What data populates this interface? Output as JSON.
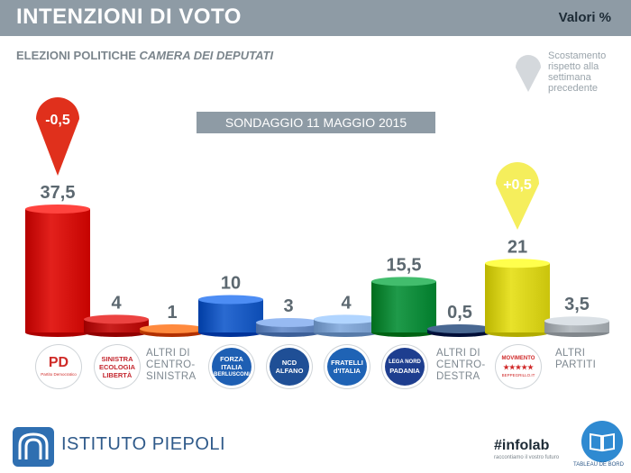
{
  "header": {
    "title": "INTENZIONI DI VOTO",
    "unit": "Valori %"
  },
  "subtitle": {
    "prefix": "ELEZIONI POLITICHE",
    "emphasis": "CAMERA DEI DEPUTATI"
  },
  "survey_label": "SONDAGGIO 11 MAGGIO 2015",
  "legend": {
    "lines": [
      "Scostamento",
      "rispetto alla",
      "settimana",
      "precedente"
    ],
    "color": "#d4d8dc"
  },
  "chart_data": {
    "type": "bar",
    "ylim": [
      0,
      40
    ],
    "categories": [
      "PD",
      "Sinistra Ecologia Libertà",
      "Altri di centro-sinistra",
      "Forza Italia",
      "NCD Alfano",
      "Fratelli d'Italia",
      "Lega Nord",
      "Altri di centro-destra",
      "Movimento 5 Stelle",
      "Altri partiti"
    ],
    "values": [
      37.5,
      4,
      1,
      10,
      3,
      4,
      15.5,
      0.5,
      21,
      3.5
    ],
    "value_labels": [
      "37,5",
      "4",
      "1",
      "10",
      "3",
      "4",
      "15,5",
      "0,5",
      "21",
      "3,5"
    ],
    "colors": [
      "#e3211c",
      "#c9201e",
      "#e8671b",
      "#2a6ad1",
      "#7497cf",
      "#8eb2e0",
      "#1f9a4a",
      "#26456f",
      "#e8e22a",
      "#b8bec3"
    ],
    "changes": [
      {
        "index": 0,
        "label": "-0,5",
        "color": "#e0301c"
      },
      {
        "index": 8,
        "label": "+0,5",
        "color": "#f5ee5c"
      }
    ],
    "grid": false,
    "legend": "top-right"
  },
  "logos": [
    {
      "key": "pd",
      "lines": [
        "PD"
      ],
      "sub": "Partito Democratico",
      "color": "#cf2a27"
    },
    {
      "key": "sel",
      "lines": [
        "SINISTRA",
        "ECOLOGIA",
        "LIBERTÀ"
      ],
      "color": "#c4262e"
    },
    {
      "key": "fi",
      "lines": [
        "FORZA",
        "ITALIA",
        "BERLUSCONI"
      ],
      "color": "#1e5fb3"
    },
    {
      "key": "ncd",
      "lines": [
        "NCD",
        "ALFANO"
      ],
      "color": "#1f4f96"
    },
    {
      "key": "fdi",
      "lines": [
        "FRATELLI",
        "d'ITALIA"
      ],
      "color": "#1f63b5"
    },
    {
      "key": "lega",
      "lines": [
        "LEGA NORD",
        "PADANIA"
      ],
      "color": "#1e3e8f"
    },
    {
      "key": "m5s",
      "lines": [
        "MOVIMENTO",
        "★★★★★"
      ],
      "sub": "BEPPEGRILLO.IT",
      "color": "#d02a2a"
    }
  ],
  "others": [
    {
      "lines": [
        "ALTRI DI",
        "CENTRO-",
        "SINISTRA"
      ]
    },
    {
      "lines": [
        "ALTRI DI",
        "CENTRO-",
        "DESTRA"
      ]
    },
    {
      "lines": [
        "ALTRI",
        "PARTITI"
      ]
    }
  ],
  "footer": {
    "brand": "ISTITUTO PIEPOLI",
    "infolab": "#infolab",
    "infolab_tagline": "raccontiamo il vostro futuro",
    "tableau": "TABLEAU DE BORD"
  }
}
